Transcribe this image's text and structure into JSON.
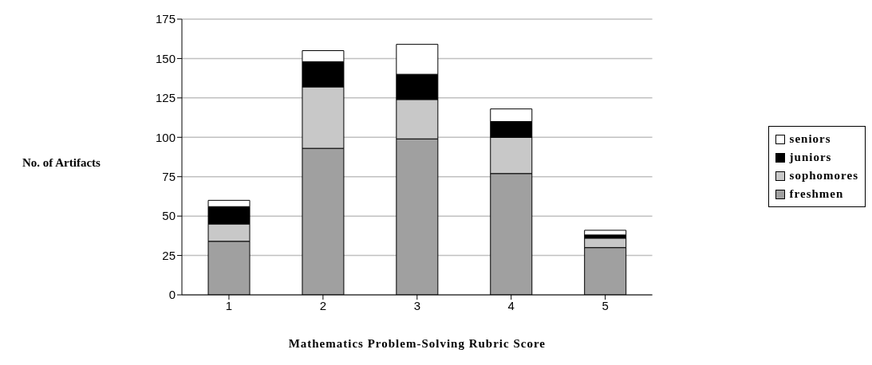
{
  "chart_data": {
    "type": "bar",
    "stacked": true,
    "xlabel": "Mathematics Problem-Solving Rubric Score",
    "ylabel": "No. of Artifacts",
    "categories": [
      "1",
      "2",
      "3",
      "4",
      "5"
    ],
    "series": [
      {
        "name": "freshmen",
        "color": "#a0a0a0",
        "values": [
          34,
          93,
          99,
          77,
          30
        ]
      },
      {
        "name": "sophomores",
        "color": "#c8c8c8",
        "values": [
          11,
          39,
          25,
          23,
          6
        ]
      },
      {
        "name": "juniors",
        "color": "#000000",
        "values": [
          11,
          16,
          16,
          10,
          2
        ]
      },
      {
        "name": "seniors",
        "color": "#ffffff",
        "values": [
          4,
          7,
          19,
          8,
          3
        ]
      }
    ],
    "ylim": [
      0,
      175
    ],
    "yticks": [
      0,
      25,
      50,
      75,
      100,
      125,
      150,
      175
    ],
    "grid": "y",
    "legend": "right"
  }
}
